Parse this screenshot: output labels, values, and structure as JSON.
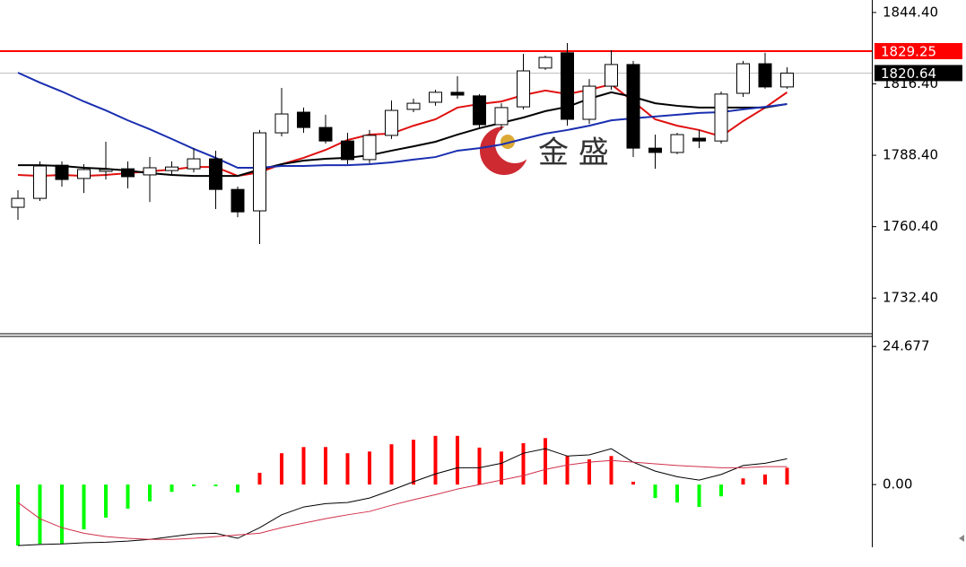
{
  "chart_data": [
    {
      "type": "candlestick",
      "watermark": "金 盛",
      "ylim": [
        1718.4,
        1849.3
      ],
      "yticks": [
        {
          "value": 1844.4,
          "label": "1844.40"
        },
        {
          "value": 1816.4,
          "label": "1816.40"
        },
        {
          "value": 1788.4,
          "label": "1788.40"
        },
        {
          "value": 1760.4,
          "label": "1760.40"
        },
        {
          "value": 1732.4,
          "label": "1732.40"
        }
      ],
      "up_color": "#ffffff",
      "down_color": "#000000",
      "open": [
        1768.0,
        1771.5,
        1784.5,
        1779.3,
        1782.1,
        1783.1,
        1780.7,
        1782.4,
        1783.1,
        1787.0,
        1775.0,
        1766.6,
        1797.2,
        1805.3,
        1799.3,
        1794.0,
        1786.7,
        1796.2,
        1806.4,
        1809.2,
        1813.1,
        1811.7,
        1800.4,
        1807.4,
        1822.6,
        1828.6,
        1802.5,
        1815.5,
        1824.0,
        1791.2,
        1789.5,
        1795.1,
        1794.0,
        1812.7,
        1824.3,
        1815.2
      ],
      "high": [
        1774.7,
        1786.0,
        1786.0,
        1784.9,
        1793.7,
        1786.0,
        1787.7,
        1786.0,
        1791.2,
        1790.2,
        1776.1,
        1798.3,
        1814.8,
        1807.1,
        1804.3,
        1797.2,
        1798.3,
        1809.9,
        1810.6,
        1814.1,
        1819.4,
        1812.4,
        1808.8,
        1828.2,
        1827.5,
        1832.4,
        1818.3,
        1829.6,
        1825.4,
        1796.5,
        1797.2,
        1798.3,
        1813.4,
        1825.4,
        1828.6,
        1822.9
      ],
      "low": [
        1763.1,
        1770.5,
        1776.1,
        1773.6,
        1778.9,
        1775.4,
        1770.1,
        1780.7,
        1781.7,
        1767.3,
        1764.1,
        1753.6,
        1795.8,
        1797.2,
        1793.0,
        1784.9,
        1785.3,
        1794.8,
        1805.3,
        1807.8,
        1810.6,
        1799.3,
        1798.3,
        1806.4,
        1821.9,
        1800.0,
        1800.7,
        1814.1,
        1787.7,
        1783.1,
        1788.8,
        1791.2,
        1793.0,
        1811.3,
        1814.5,
        1814.5
      ],
      "close": [
        1771.5,
        1784.2,
        1778.9,
        1782.8,
        1782.8,
        1780.0,
        1783.5,
        1783.8,
        1787.0,
        1775.0,
        1766.2,
        1797.2,
        1804.6,
        1799.3,
        1794.0,
        1786.7,
        1796.2,
        1806.0,
        1808.8,
        1813.1,
        1812.0,
        1800.4,
        1807.1,
        1821.5,
        1826.8,
        1802.5,
        1815.5,
        1824.0,
        1791.2,
        1789.5,
        1796.5,
        1794.0,
        1812.4,
        1824.3,
        1815.2,
        1820.64
      ],
      "moving_averages": [
        {
          "color": "#e01010",
          "values": [
            1780.7,
            1780.3,
            1780.7,
            1780.3,
            1780.7,
            1781.4,
            1782.1,
            1782.8,
            1783.8,
            1783.8,
            1780.3,
            1781.7,
            1784.9,
            1787.4,
            1790.5,
            1794.4,
            1796.5,
            1796.9,
            1800.0,
            1802.5,
            1807.1,
            1808.5,
            1809.5,
            1812.0,
            1813.8,
            1812.4,
            1814.1,
            1816.2,
            1809.5,
            1802.5,
            1800.0,
            1798.3,
            1795.8,
            1801.8,
            1807.1,
            1813.1
          ]
        },
        {
          "color": "#000000",
          "values": [
            1784.5,
            1784.5,
            1784.2,
            1783.5,
            1783.1,
            1782.4,
            1781.4,
            1780.7,
            1780.3,
            1780.3,
            1780.3,
            1782.8,
            1784.9,
            1786.3,
            1787.0,
            1787.4,
            1788.4,
            1790.2,
            1791.9,
            1793.7,
            1796.5,
            1799.0,
            1801.1,
            1803.2,
            1805.7,
            1807.4,
            1810.6,
            1813.1,
            1811.3,
            1808.8,
            1807.8,
            1807.1,
            1807.1,
            1807.1,
            1807.1,
            1808.5
          ]
        },
        {
          "color": "#1a2fb0",
          "values": [
            1820.8,
            1816.9,
            1813.4,
            1809.5,
            1806.0,
            1802.1,
            1798.6,
            1794.8,
            1790.9,
            1787.4,
            1783.5,
            1783.5,
            1784.2,
            1784.2,
            1784.5,
            1784.5,
            1784.9,
            1785.6,
            1786.7,
            1787.7,
            1790.2,
            1791.2,
            1792.6,
            1794.8,
            1796.9,
            1798.3,
            1800.0,
            1802.1,
            1802.9,
            1803.6,
            1804.3,
            1805.0,
            1805.3,
            1806.4,
            1807.4,
            1808.5
          ]
        }
      ],
      "levels": [
        {
          "value": 1829.25,
          "color": "#ff0000",
          "line": "#ff0000"
        },
        {
          "value": 1820.64,
          "color": "#000000",
          "line": "#c0c0c0"
        }
      ]
    },
    {
      "type": "macd",
      "ylim": [
        -11.2,
        26.3
      ],
      "yticks": [
        {
          "value": 0,
          "label": "0.00"
        },
        24.677
      ],
      "positive_color": "#ff0000",
      "negative_color": "#00ff00",
      "histogram": [
        -10.9,
        -10.6,
        -10.6,
        -8.0,
        -5.9,
        -4.3,
        -3.0,
        -1.3,
        -0.3,
        -0.3,
        -1.4,
        2.1,
        5.6,
        6.7,
        6.7,
        5.6,
        5.9,
        7.2,
        8.0,
        8.7,
        8.7,
        6.6,
        5.9,
        7.4,
        8.3,
        5.1,
        4.5,
        5.1,
        0.5,
        -2.4,
        -3.2,
        -4.0,
        -2.1,
        1.1,
        1.8,
        3.0
      ],
      "lines": [
        {
          "color": "#000000",
          "values": [
            -10.9,
            -10.7,
            -10.6,
            -10.4,
            -10.3,
            -10.1,
            -9.8,
            -9.3,
            -8.8,
            -8.7,
            -9.6,
            -7.7,
            -5.4,
            -4.0,
            -3.4,
            -3.2,
            -2.4,
            -1.0,
            0.5,
            1.9,
            3.0,
            3.0,
            3.8,
            5.6,
            6.4,
            5.1,
            5.3,
            6.4,
            4.0,
            2.4,
            1.4,
            0.8,
            1.8,
            3.4,
            3.8,
            4.6
          ]
        },
        {
          "color": "#d0304a",
          "values": [
            -3.2,
            -6.1,
            -7.7,
            -8.7,
            -9.3,
            -9.6,
            -9.8,
            -9.8,
            -9.6,
            -9.3,
            -9.0,
            -8.7,
            -7.7,
            -6.9,
            -6.1,
            -5.4,
            -4.8,
            -3.7,
            -2.7,
            -1.8,
            -0.8,
            0,
            0.8,
            1.6,
            2.7,
            3.5,
            4.0,
            4.3,
            4.0,
            3.7,
            3.4,
            3.2,
            3.0,
            3.0,
            3.2,
            3.2
          ]
        }
      ]
    }
  ]
}
